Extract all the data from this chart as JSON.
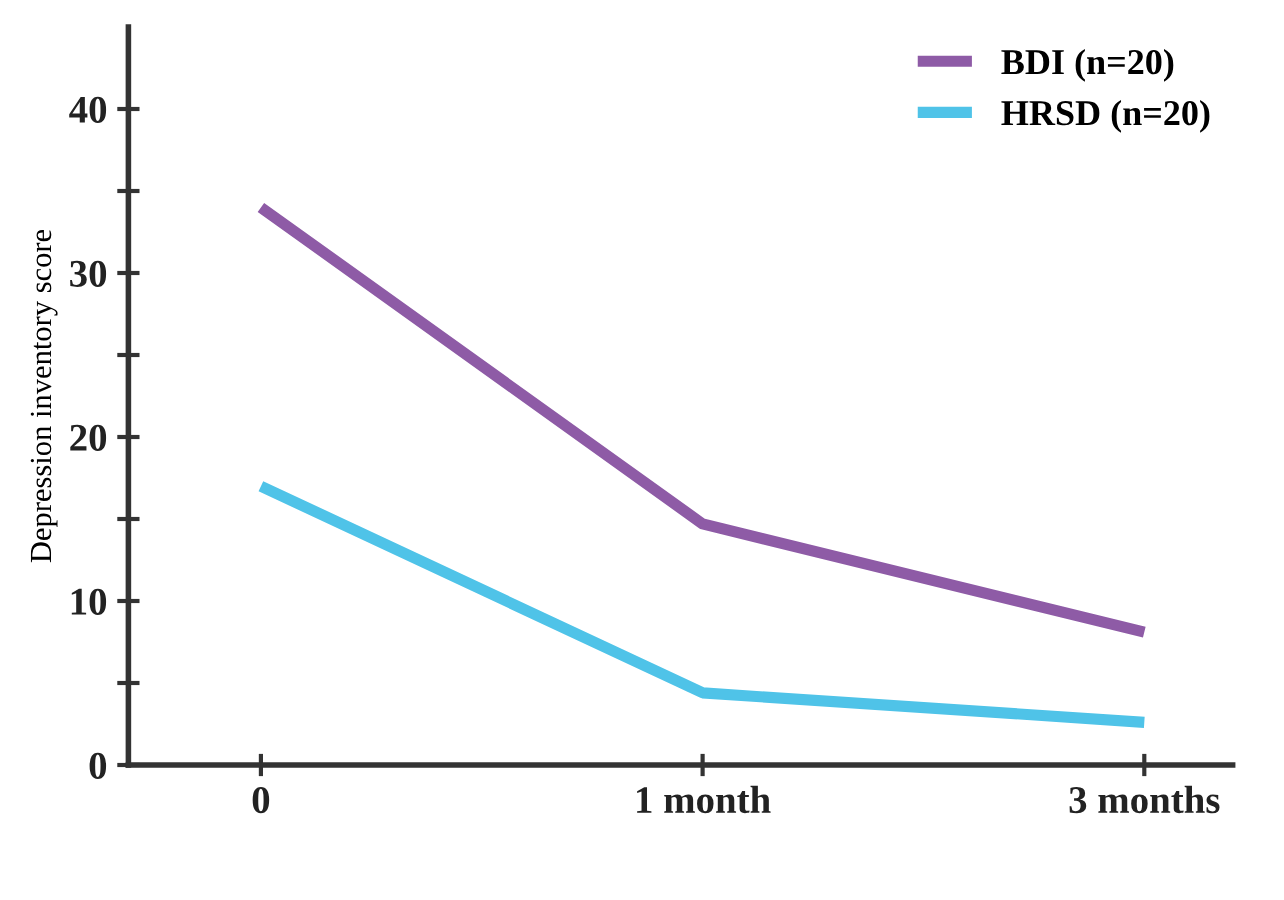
{
  "chart_data": {
    "type": "line",
    "ylabel": "Depression inventory score",
    "categories": [
      "0",
      "1 month",
      "3 months"
    ],
    "series": [
      {
        "name": "BDI (n=20)",
        "color": "#8e5ba6",
        "values": [
          34,
          14.7,
          8.1
        ]
      },
      {
        "name": "HRSD (n=20)",
        "color": "#4fc3e8",
        "values": [
          17,
          4.4,
          2.6
        ]
      }
    ],
    "ylim": [
      0,
      45
    ],
    "yticks": [
      0,
      {
        "value": 5,
        "label": null
      },
      10,
      {
        "value": 15,
        "label": null
      },
      20,
      {
        "value": 25,
        "label": null
      },
      30,
      {
        "value": 35,
        "label": null
      },
      40
    ],
    "grid": false,
    "legend": "top right",
    "marker": "none",
    "line_style": "solid"
  }
}
